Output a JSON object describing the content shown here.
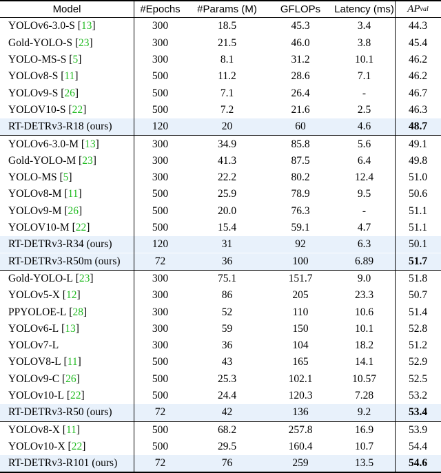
{
  "columns": [
    "Model",
    "#Epochs",
    "#Params (M)",
    "GFLOPs",
    "Latency (ms)",
    "AP",
    "val"
  ],
  "groups": [
    [
      {
        "name": "YOLOv6-3.0-S",
        "ref": "13",
        "epochs": "300",
        "params": "18.5",
        "gflops": "45.3",
        "latency": "3.4",
        "ap": "44.3"
      },
      {
        "name": "Gold-YOLO-S",
        "ref": "23",
        "epochs": "300",
        "params": "21.5",
        "gflops": "46.0",
        "latency": "3.8",
        "ap": "45.4"
      },
      {
        "name": "YOLO-MS-S",
        "ref": "5",
        "epochs": "300",
        "params": "8.1",
        "gflops": "31.2",
        "latency": "10.1",
        "ap": "46.2"
      },
      {
        "name": "YOLOv8-S",
        "ref": "11",
        "epochs": "500",
        "params": "11.2",
        "gflops": "28.6",
        "latency": "7.1",
        "ap": "46.2"
      },
      {
        "name": "YOLOv9-S",
        "ref": "26",
        "epochs": "500",
        "params": "7.1",
        "gflops": "26.4",
        "latency": "-",
        "ap": "46.7"
      },
      {
        "name": "YOLOV10-S",
        "ref": "22",
        "epochs": "500",
        "params": "7.2",
        "gflops": "21.6",
        "latency": "2.5",
        "ap": "46.3"
      },
      {
        "name": "RT-DETRv3-R18 (ours)",
        "ref": "",
        "epochs": "120",
        "params": "20",
        "gflops": "60",
        "latency": "4.6",
        "ap": "48.7",
        "ours": true,
        "best": true
      }
    ],
    [
      {
        "name": "YOLOv6-3.0-M",
        "ref": "13",
        "epochs": "300",
        "params": "34.9",
        "gflops": "85.8",
        "latency": "5.6",
        "ap": "49.1"
      },
      {
        "name": "Gold-YOLO-M",
        "ref": "23",
        "epochs": "300",
        "params": "41.3",
        "gflops": "87.5",
        "latency": "6.4",
        "ap": "49.8"
      },
      {
        "name": "YOLO-MS",
        "ref": "5",
        "epochs": "300",
        "params": "22.2",
        "gflops": "80.2",
        "latency": "12.4",
        "ap": "51.0"
      },
      {
        "name": "YOLOv8-M",
        "ref": "11",
        "epochs": "500",
        "params": "25.9",
        "gflops": "78.9",
        "latency": "9.5",
        "ap": "50.6"
      },
      {
        "name": "YOLOv9-M",
        "ref": "26",
        "epochs": "500",
        "params": "20.0",
        "gflops": "76.3",
        "latency": "-",
        "ap": "51.1"
      },
      {
        "name": "YOLOV10-M",
        "ref": "22",
        "epochs": "500",
        "params": "15.4",
        "gflops": "59.1",
        "latency": "4.7",
        "ap": "51.1"
      },
      {
        "name": "RT-DETRv3-R34 (ours)",
        "ref": "",
        "epochs": "120",
        "params": "31",
        "gflops": "92",
        "latency": "6.3",
        "ap": "50.1",
        "ours": true,
        "best": false
      },
      {
        "name": "RT-DETRv3-R50m (ours)",
        "ref": "",
        "epochs": "72",
        "params": "36",
        "gflops": "100",
        "latency": "6.89",
        "ap": "51.7",
        "ours": true,
        "best": true
      }
    ],
    [
      {
        "name": "Gold-YOLO-L",
        "ref": "23",
        "epochs": "300",
        "params": "75.1",
        "gflops": "151.7",
        "latency": "9.0",
        "ap": "51.8"
      },
      {
        "name": "YOLOv5-X",
        "ref": "12",
        "epochs": "300",
        "params": "86",
        "gflops": "205",
        "latency": "23.3",
        "ap": "50.7"
      },
      {
        "name": "PPYOLOE-L",
        "ref": "28",
        "epochs": "300",
        "params": "52",
        "gflops": "110",
        "latency": "10.6",
        "ap": "51.4"
      },
      {
        "name": "YOLOv6-L",
        "ref": "13",
        "epochs": "300",
        "params": "59",
        "gflops": "150",
        "latency": "10.1",
        "ap": "52.8"
      },
      {
        "name": "YOLOv7-L",
        "ref": "",
        "epochs": "300",
        "params": "36",
        "gflops": "104",
        "latency": "18.2",
        "ap": "51.2"
      },
      {
        "name": "YOLOV8-L",
        "ref": "11",
        "epochs": "500",
        "params": "43",
        "gflops": "165",
        "latency": "14.1",
        "ap": "52.9"
      },
      {
        "name": "YOLOv9-C",
        "ref": "26",
        "epochs": "500",
        "params": "25.3",
        "gflops": "102.1",
        "latency": "10.57",
        "ap": "52.5"
      },
      {
        "name": "YOLOv10-L",
        "ref": "22",
        "epochs": "500",
        "params": "24.4",
        "gflops": "120.3",
        "latency": "7.28",
        "ap": "53.2"
      },
      {
        "name": "RT-DETRv3-R50 (ours)",
        "ref": "",
        "epochs": "72",
        "params": "42",
        "gflops": "136",
        "latency": "9.2",
        "ap": "53.4",
        "ours": true,
        "best": true
      }
    ],
    [
      {
        "name": "YOLOv8-X",
        "ref": "11",
        "epochs": "500",
        "params": "68.2",
        "gflops": "257.8",
        "latency": "16.9",
        "ap": "53.9"
      },
      {
        "name": "YOLOv10-X",
        "ref": "22",
        "epochs": "500",
        "params": "29.5",
        "gflops": "160.4",
        "latency": "10.7",
        "ap": "54.4"
      },
      {
        "name": "RT-DETRv3-R101 (ours)",
        "ref": "",
        "epochs": "72",
        "params": "76",
        "gflops": "259",
        "latency": "13.5",
        "ap": "54.6",
        "ours": true,
        "best": true
      }
    ]
  ],
  "colors": {
    "highlight": "#e8f1fb",
    "ref": "#22bb22"
  }
}
